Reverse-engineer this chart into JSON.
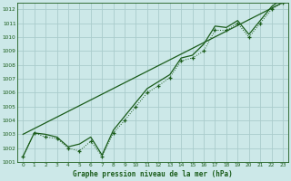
{
  "title": "Graphe pression niveau de la mer (hPa)",
  "bg_color": "#cce8e8",
  "grid_color": "#aacccc",
  "line_color": "#1a5c1a",
  "xlim": [
    -0.5,
    23.5
  ],
  "ylim": [
    1001.0,
    1012.5
  ],
  "xticks": [
    0,
    1,
    2,
    3,
    4,
    5,
    6,
    7,
    8,
    9,
    10,
    11,
    12,
    13,
    14,
    15,
    16,
    17,
    18,
    19,
    20,
    21,
    22,
    23
  ],
  "yticks": [
    1001,
    1002,
    1003,
    1004,
    1005,
    1006,
    1007,
    1008,
    1009,
    1010,
    1011,
    1012
  ],
  "dotted_x": [
    0,
    1,
    2,
    3,
    4,
    5,
    6,
    7,
    8,
    9,
    10,
    11,
    12,
    13,
    14,
    15,
    16,
    17,
    18,
    19,
    20,
    21,
    22,
    23
  ],
  "dotted_y": [
    1001.4,
    1003.1,
    1002.8,
    1002.7,
    1002.0,
    1001.8,
    1002.5,
    1001.4,
    1003.1,
    1004.0,
    1005.0,
    1006.0,
    1006.5,
    1007.1,
    1008.3,
    1008.5,
    1009.0,
    1010.5,
    1010.5,
    1011.0,
    1010.0,
    1011.0,
    1012.0,
    1012.5
  ],
  "smooth_x": [
    0,
    1,
    2,
    3,
    4,
    5,
    6,
    7,
    8,
    9,
    10,
    11,
    12,
    13,
    14,
    15,
    16,
    17,
    18,
    19,
    20,
    21,
    22,
    23
  ],
  "smooth_y": [
    1001.4,
    1003.1,
    1003.0,
    1002.8,
    1002.1,
    1002.3,
    1002.8,
    1001.5,
    1003.3,
    1004.3,
    1005.3,
    1006.3,
    1006.8,
    1007.3,
    1008.5,
    1008.7,
    1009.5,
    1010.8,
    1010.7,
    1011.2,
    1010.2,
    1011.2,
    1012.2,
    1012.8
  ],
  "trend_x": [
    0,
    23
  ],
  "trend_y": [
    1003.0,
    1012.5
  ]
}
